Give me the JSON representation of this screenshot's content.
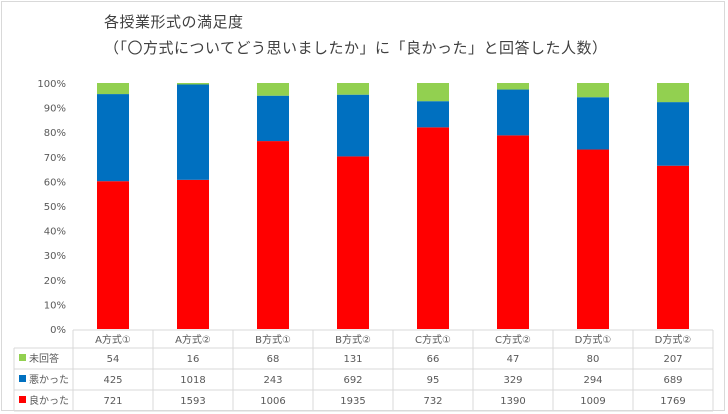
{
  "chart_data": {
    "type": "bar",
    "stacked": "percent",
    "title": "各授業形式の満足度",
    "subtitle": "（「〇方式についてどう思いましたか」に「良かった」と回答した人数）",
    "categories": [
      "A方式①",
      "A方式②",
      "B方式①",
      "B方式②",
      "C方式①",
      "C方式②",
      "D方式①",
      "D方式②"
    ],
    "series": [
      {
        "name": "良かった",
        "color": "#ff0000",
        "values": [
          721,
          1593,
          1006,
          1935,
          732,
          1390,
          1009,
          1769
        ]
      },
      {
        "name": "悪かった",
        "color": "#0070c0",
        "values": [
          425,
          1018,
          243,
          692,
          95,
          329,
          294,
          689
        ]
      },
      {
        "name": "未回答",
        "color": "#92d050",
        "values": [
          54,
          16,
          68,
          131,
          66,
          47,
          80,
          207
        ]
      }
    ],
    "table_row_order": [
      "未回答",
      "悪かった",
      "良かった"
    ],
    "yticks": [
      "0%",
      "10%",
      "20%",
      "30%",
      "40%",
      "50%",
      "60%",
      "70%",
      "80%",
      "90%",
      "100%"
    ],
    "ylim": [
      0,
      100
    ],
    "grid": false,
    "legend": "data-table"
  }
}
